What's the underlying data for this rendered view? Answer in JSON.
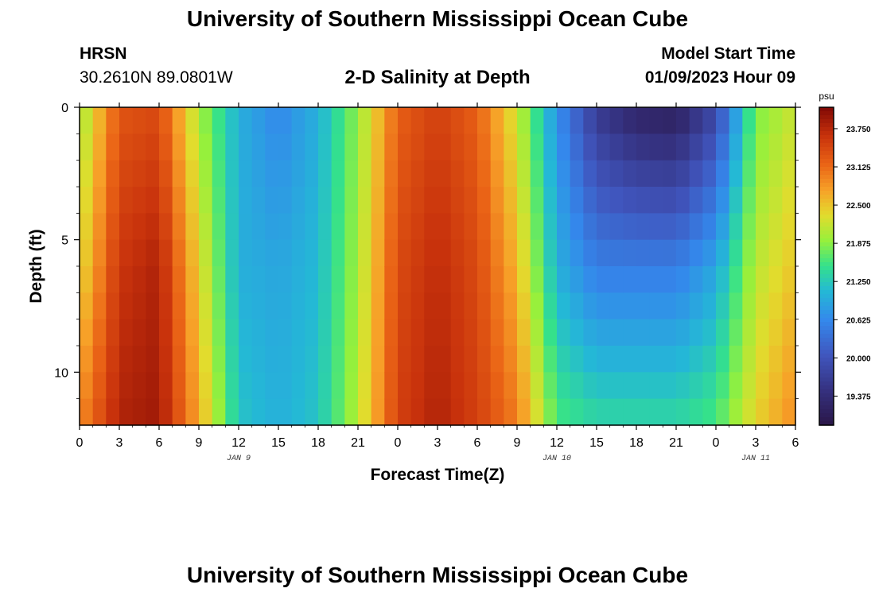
{
  "page": {
    "title": "University of Southern Mississippi Ocean Cube",
    "station": "HRSN",
    "coordinates": "30.2610N  89.0801W",
    "subtitle": "2-D Salinity at Depth",
    "model_start_label": "Model Start Time",
    "model_start_time": "01/09/2023 Hour 09",
    "footer_title": "University of Southern Mississippi Ocean Cube"
  },
  "chart_data": {
    "type": "heatmap",
    "title": "2-D Salinity at Depth",
    "xlabel": "Forecast Time(Z)",
    "ylabel": "Depth (ft)",
    "x_ticks": [
      "0",
      "3",
      "6",
      "9",
      "12",
      "15",
      "18",
      "21",
      "0",
      "3",
      "6",
      "9",
      "12",
      "15",
      "18",
      "21",
      "0",
      "3",
      "6"
    ],
    "x_tick_hours": [
      0,
      3,
      6,
      9,
      12,
      15,
      18,
      21,
      24,
      27,
      30,
      33,
      36,
      39,
      42,
      45,
      48,
      51,
      54
    ],
    "x_range_hours": [
      0,
      54
    ],
    "date_labels": [
      {
        "label": "JAN 9",
        "hour": 12
      },
      {
        "label": "JAN 10",
        "hour": 36
      },
      {
        "label": "JAN 11",
        "hour": 51
      }
    ],
    "y_ticks": [
      0,
      5,
      10
    ],
    "y_range_ft": [
      0,
      12
    ],
    "colorbar": {
      "unit": "psu",
      "vmin": 18.9,
      "vmax": 24.1,
      "ticks": [
        "23.750",
        "23.125",
        "22.500",
        "21.875",
        "21.250",
        "20.625",
        "20.000",
        "19.375"
      ],
      "tick_values": [
        23.75,
        23.125,
        22.5,
        21.875,
        21.25,
        20.625,
        20.0,
        19.375
      ]
    },
    "grid": {
      "times_hours": [
        0,
        3,
        6,
        9,
        12,
        15,
        18,
        21,
        24,
        27,
        30,
        33,
        36,
        39,
        42,
        45,
        48,
        51,
        54
      ],
      "depth_rows_ft": [
        0,
        6,
        12
      ],
      "surface_psu": [
        21.9,
        23.3,
        23.4,
        22.0,
        21.0,
        20.6,
        21.0,
        21.9,
        23.2,
        23.5,
        23.2,
        22.2,
        20.7,
        19.6,
        19.2,
        19.1,
        19.8,
        21.8,
        22.2
      ],
      "mid_psu": [
        22.3,
        23.6,
        23.8,
        22.4,
        21.0,
        20.9,
        21.1,
        22.0,
        23.4,
        23.7,
        23.4,
        22.6,
        21.0,
        20.5,
        20.5,
        20.5,
        20.9,
        22.1,
        22.5
      ],
      "bottom_psu": [
        22.9,
        23.8,
        23.9,
        22.7,
        21.2,
        21.0,
        21.2,
        22.1,
        23.5,
        23.8,
        23.5,
        23.0,
        21.6,
        21.4,
        21.4,
        21.4,
        21.6,
        22.4,
        22.9
      ]
    }
  }
}
